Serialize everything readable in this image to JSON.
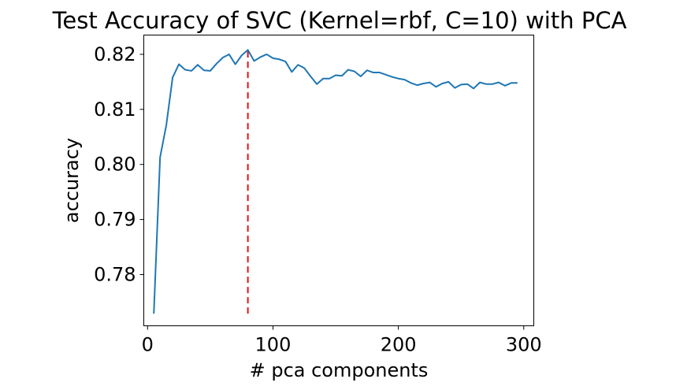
{
  "chart_data": {
    "type": "line",
    "title": "Test Accuracy of SVC (Kernel=rbf, C=10) with PCA",
    "xlabel": "# pca components",
    "ylabel": "accuracy",
    "xlim": [
      -3,
      308
    ],
    "ylim": [
      0.7707,
      0.8235
    ],
    "x_ticks": [
      0,
      100,
      200,
      300
    ],
    "x_tick_labels": [
      "0",
      "100",
      "200",
      "300"
    ],
    "y_ticks": [
      0.78,
      0.79,
      0.8,
      0.81,
      0.82
    ],
    "y_tick_labels": [
      "0.78",
      "0.79",
      "0.80",
      "0.81",
      "0.82"
    ],
    "grid": false,
    "line_color": "#1f77b4",
    "series": [
      {
        "x": [
          5,
          10,
          15,
          20,
          25,
          30,
          35,
          40,
          45,
          50,
          55,
          60,
          65,
          70,
          75,
          80,
          85,
          90,
          95,
          100,
          105,
          110,
          115,
          120,
          125,
          130,
          135,
          140,
          145,
          150,
          155,
          160,
          165,
          170,
          175,
          180,
          185,
          190,
          195,
          200,
          205,
          210,
          215,
          220,
          225,
          230,
          235,
          240,
          245,
          250,
          255,
          260,
          265,
          270,
          275,
          280,
          285,
          290,
          295
        ],
        "values": [
          0.7729,
          0.8013,
          0.8072,
          0.8158,
          0.8182,
          0.8172,
          0.817,
          0.8181,
          0.8171,
          0.817,
          0.8183,
          0.8194,
          0.82,
          0.8182,
          0.8198,
          0.8208,
          0.8188,
          0.8195,
          0.82,
          0.8193,
          0.8191,
          0.8187,
          0.8168,
          0.8181,
          0.8175,
          0.816,
          0.8146,
          0.8156,
          0.8156,
          0.8162,
          0.8161,
          0.8172,
          0.8169,
          0.816,
          0.8171,
          0.8167,
          0.8167,
          0.8163,
          0.8159,
          0.8156,
          0.8154,
          0.8148,
          0.8144,
          0.8147,
          0.8149,
          0.8141,
          0.8147,
          0.815,
          0.8139,
          0.8145,
          0.8146,
          0.8138,
          0.8149,
          0.8146,
          0.8146,
          0.8149,
          0.8143,
          0.8148,
          0.8148
        ]
      }
    ],
    "marker_line": {
      "x": 80,
      "y_range": [
        0.7729,
        0.8208
      ],
      "style": "dashed",
      "color": "#e0141a"
    }
  }
}
